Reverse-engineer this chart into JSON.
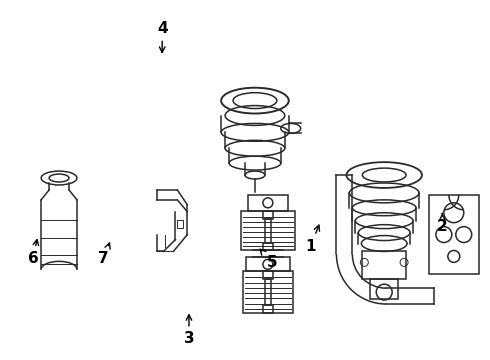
{
  "background_color": "#ffffff",
  "line_color": "#2a2a2a",
  "label_color": "#000000",
  "fig_width": 4.9,
  "fig_height": 3.6,
  "dpi": 100,
  "labels": {
    "1": [
      0.635,
      0.685,
      0.655,
      0.615
    ],
    "2": [
      0.905,
      0.63,
      0.905,
      0.585
    ],
    "3": [
      0.385,
      0.945,
      0.385,
      0.865
    ],
    "4": [
      0.33,
      0.075,
      0.33,
      0.155
    ],
    "5": [
      0.555,
      0.73,
      0.525,
      0.685
    ],
    "6": [
      0.065,
      0.72,
      0.075,
      0.655
    ],
    "7": [
      0.21,
      0.72,
      0.225,
      0.665
    ]
  }
}
